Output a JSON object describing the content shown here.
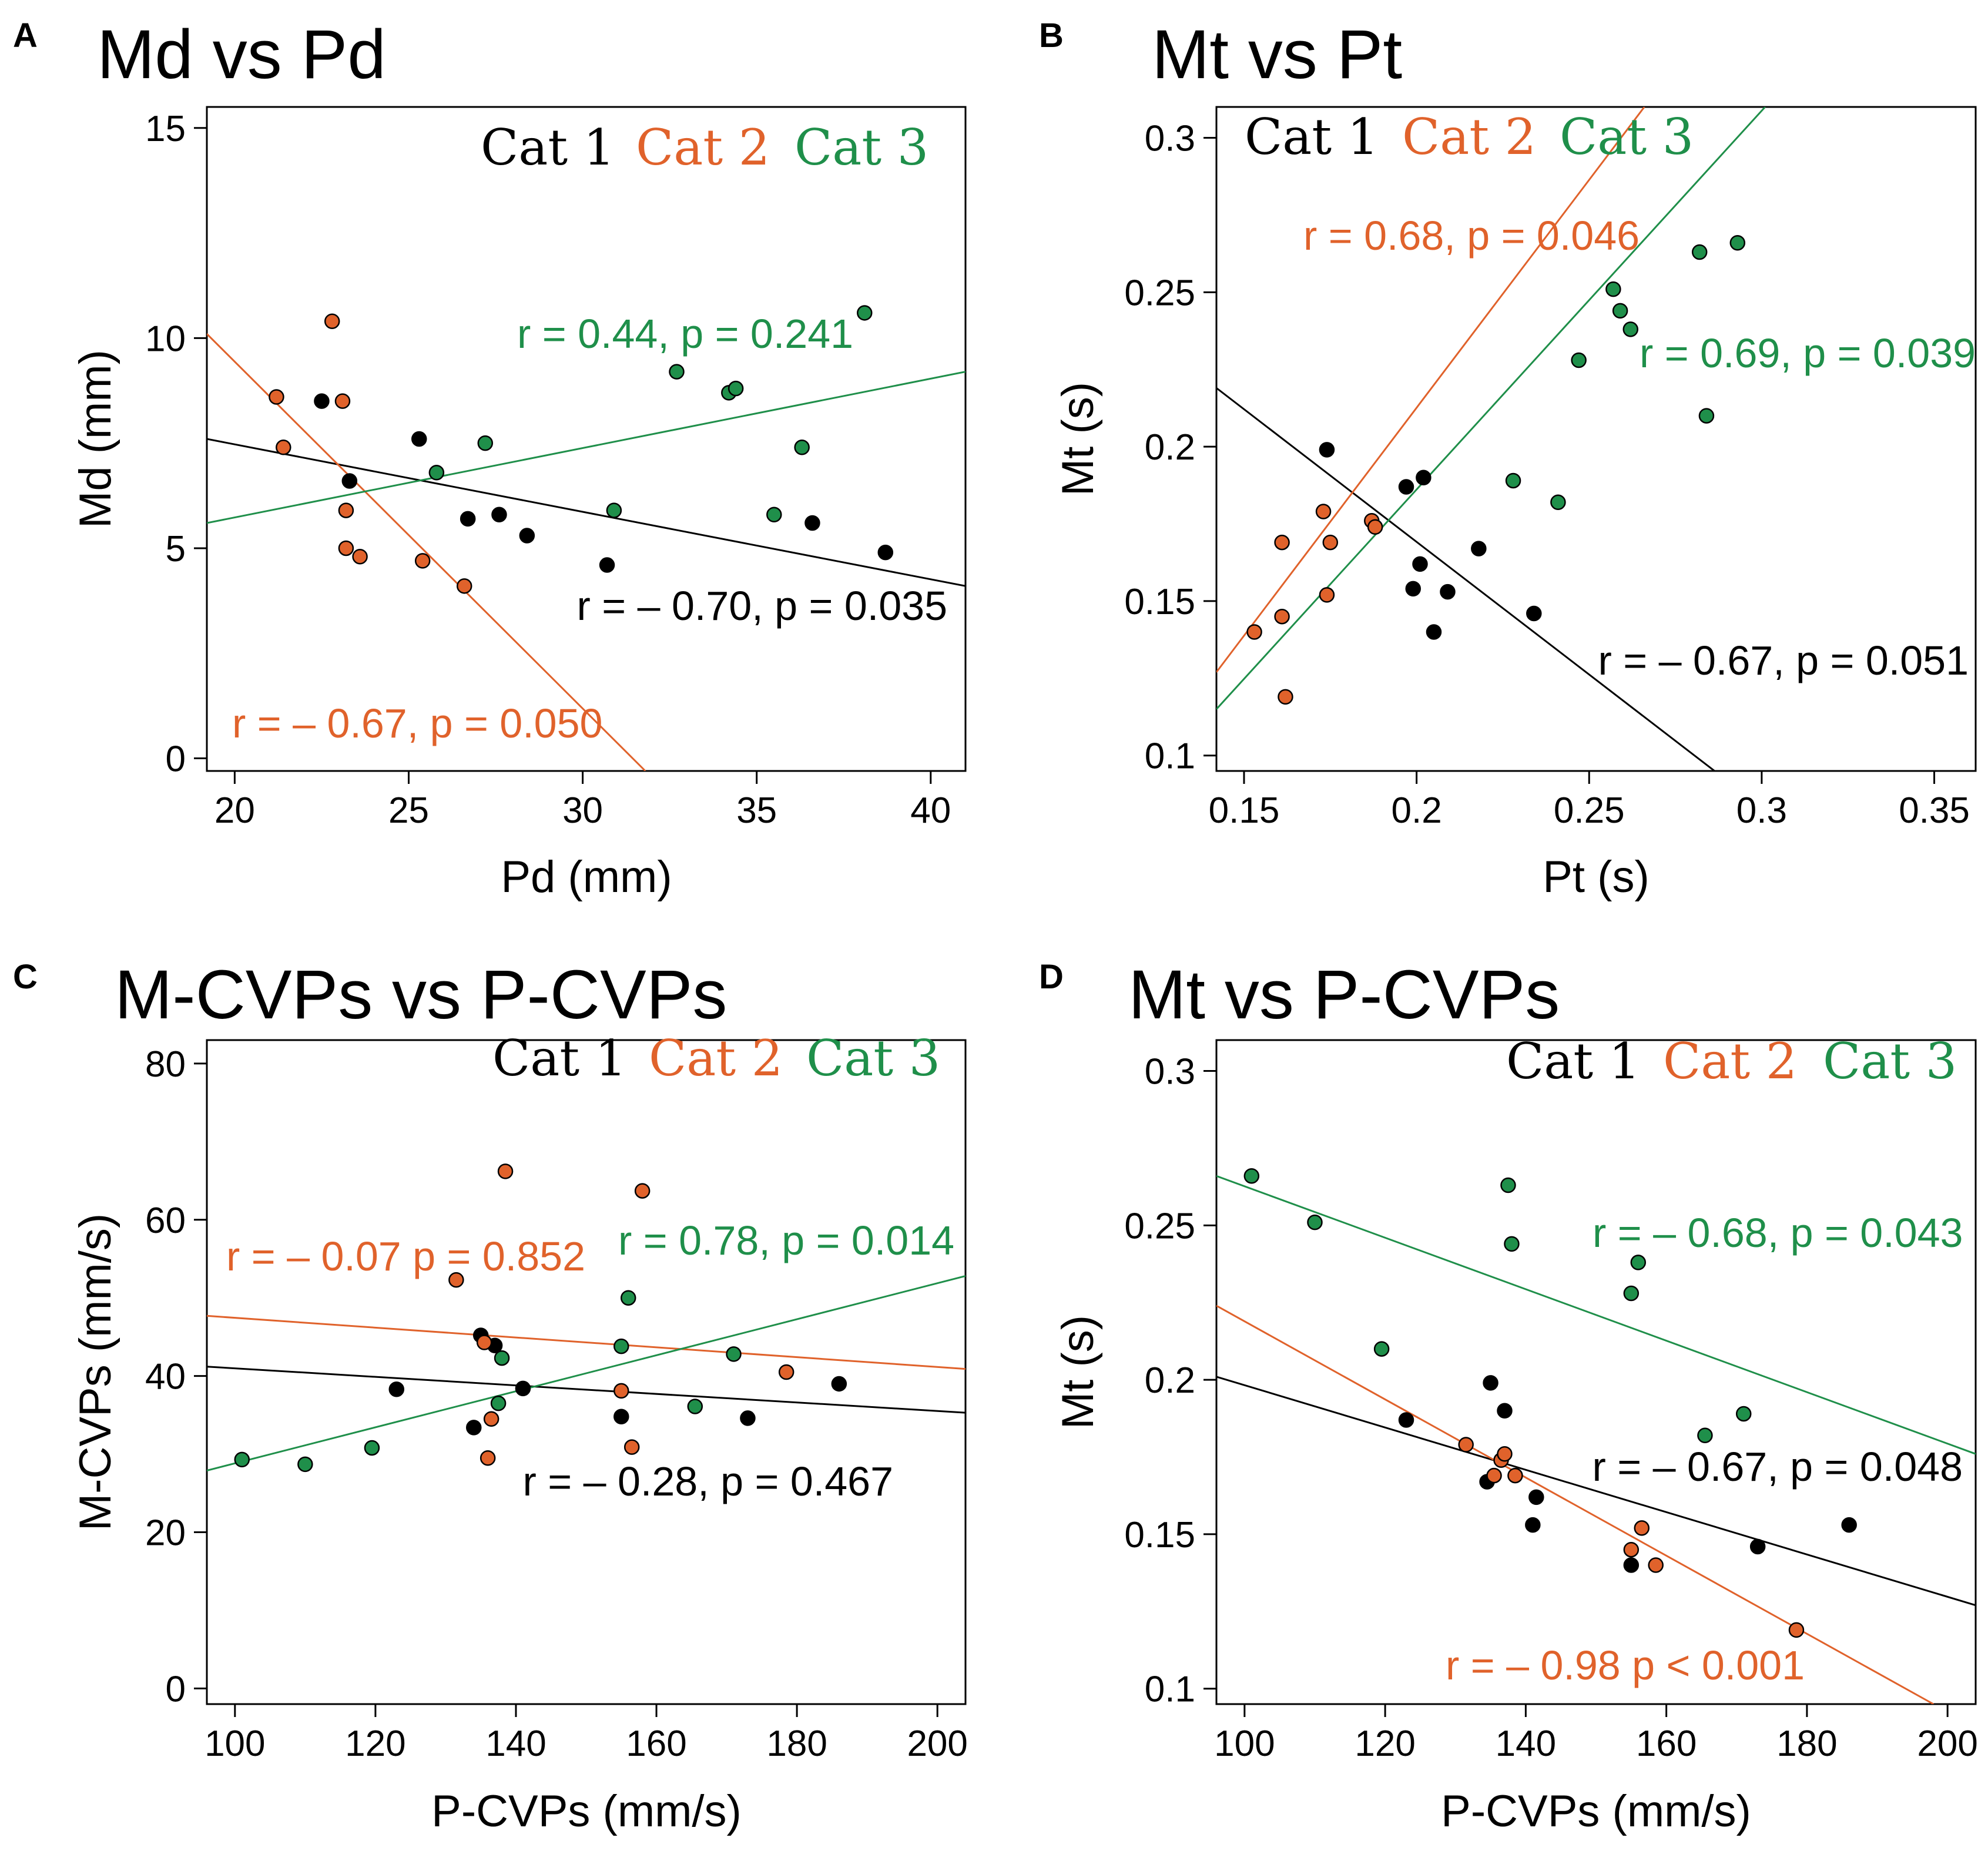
{
  "colors": {
    "cat1": "#000000",
    "cat2": "#e0622b",
    "cat3": "#1f8f4a"
  },
  "chart_data": [
    {
      "type": "scatter",
      "letter": "A",
      "title": "Md vs Pd",
      "xlabel": "Pd (mm)",
      "ylabel": "Md (mm)",
      "xlim": [
        19.2,
        41
      ],
      "ylim": [
        -0.3,
        15.5
      ],
      "xticks": [
        20,
        25,
        30,
        35,
        40
      ],
      "yticks": [
        0,
        5,
        10,
        15
      ],
      "legend": [
        "Cat 1",
        "Cat 2",
        "Cat 3"
      ],
      "series": [
        {
          "name": "Cat 1",
          "color_key": "cat1",
          "x": [
            22.5,
            23.3,
            25.3,
            26.7,
            27.6,
            28.4,
            30.7,
            36.6,
            38.7
          ],
          "y": [
            8.5,
            6.6,
            7.6,
            5.7,
            5.8,
            5.3,
            4.6,
            5.6,
            4.9
          ],
          "fit": [
            [
              19.2,
              7.6
            ],
            [
              41,
              4.1
            ]
          ],
          "annotation": "r = – 0.70, p = 0.035"
        },
        {
          "name": "Cat 2",
          "color_key": "cat2",
          "x": [
            21.2,
            21.4,
            22.8,
            23.1,
            23.2,
            23.2,
            23.6,
            25.4,
            26.6
          ],
          "y": [
            8.6,
            7.4,
            10.4,
            8.5,
            5.9,
            5.0,
            4.8,
            4.7,
            4.1
          ],
          "fit": [
            [
              19.2,
              10.1
            ],
            [
              31.8,
              -0.3
            ]
          ],
          "annotation": "r = – 0.67, p = 0.050"
        },
        {
          "name": "Cat 3",
          "color_key": "cat3",
          "x": [
            25.8,
            27.2,
            30.9,
            32.7,
            34.2,
            34.4,
            35.5,
            36.3,
            38.1
          ],
          "y": [
            6.8,
            7.5,
            5.9,
            9.2,
            8.7,
            8.8,
            5.8,
            7.4,
            10.6
          ],
          "fit": [
            [
              19.2,
              5.6
            ],
            [
              41,
              9.2
            ]
          ],
          "annotation": "r =  0.44, p = 0.241"
        }
      ]
    },
    {
      "type": "scatter",
      "letter": "B",
      "title": "Mt vs Pt",
      "xlabel": "Pt (s)",
      "ylabel": "Mt (s)",
      "xlim": [
        0.142,
        0.362
      ],
      "ylim": [
        0.095,
        0.31
      ],
      "xticks": [
        0.15,
        0.2,
        0.25,
        0.3,
        0.35
      ],
      "xtick_labels": [
        "0.15",
        "0.2",
        "0.25",
        "0.3",
        "0.35"
      ],
      "yticks": [
        0.1,
        0.15,
        0.2,
        0.25,
        0.3
      ],
      "ytick_labels": [
        "0.1",
        "0.15",
        "0.2",
        "0.25",
        "0.3"
      ],
      "legend": [
        "Cat 1",
        "Cat 2",
        "Cat 3"
      ],
      "series": [
        {
          "name": "Cat 1",
          "color_key": "cat1",
          "x": [
            0.174,
            0.197,
            0.199,
            0.201,
            0.202,
            0.205,
            0.209,
            0.218,
            0.234
          ],
          "y": [
            0.199,
            0.187,
            0.154,
            0.162,
            0.19,
            0.14,
            0.153,
            0.167,
            0.146
          ],
          "fit": [
            [
              0.142,
              0.219
            ],
            [
              0.291,
              0.091
            ]
          ],
          "annotation": "r = – 0.67, p = 0.051"
        },
        {
          "name": "Cat 2",
          "color_key": "cat2",
          "x": [
            0.153,
            0.161,
            0.161,
            0.162,
            0.173,
            0.174,
            0.175,
            0.187,
            0.188
          ],
          "y": [
            0.14,
            0.169,
            0.145,
            0.119,
            0.179,
            0.152,
            0.169,
            0.176,
            0.174
          ],
          "fit": [
            [
              0.142,
              0.127
            ],
            [
              0.266,
              0.31
            ]
          ],
          "annotation": "r = 0.68, p = 0.046"
        },
        {
          "name": "Cat 3",
          "color_key": "cat3",
          "x": [
            0.228,
            0.241,
            0.247,
            0.257,
            0.259,
            0.262,
            0.282,
            0.284,
            0.293
          ],
          "y": [
            0.189,
            0.182,
            0.228,
            0.251,
            0.244,
            0.238,
            0.263,
            0.21,
            0.266
          ],
          "fit": [
            [
              0.142,
              0.115
            ],
            [
              0.301,
              0.31
            ]
          ],
          "annotation": "r = 0.69, p = 0.039"
        }
      ]
    },
    {
      "type": "scatter",
      "letter": "C",
      "title": "M-CVPs vs P-CVPs",
      "xlabel": "P-CVPs (mm/s)",
      "ylabel": "M-CVPs (mm/s)",
      "xlim": [
        96,
        204
      ],
      "ylim": [
        -2,
        83
      ],
      "xticks": [
        100,
        120,
        140,
        160,
        180,
        200
      ],
      "yticks": [
        0,
        20,
        40,
        60,
        80
      ],
      "legend": [
        "Cat 1",
        "Cat 2",
        "Cat 3"
      ],
      "series": [
        {
          "name": "Cat 1",
          "color_key": "cat1",
          "x": [
            123,
            134,
            135,
            137,
            141,
            155,
            173,
            186
          ],
          "y": [
            38.3,
            33.4,
            45.2,
            43.9,
            38.4,
            34.8,
            34.6,
            39.0
          ],
          "fit": [
            [
              96,
              41.2
            ],
            [
              204,
              35.3
            ]
          ],
          "annotation": "r = – 0.28, p = 0.467"
        },
        {
          "name": "Cat 2",
          "color_key": "cat2",
          "x": [
            131.5,
            135.5,
            136,
            136.5,
            138.5,
            155,
            156.5,
            158,
            178.5
          ],
          "y": [
            52.3,
            44.3,
            29.5,
            34.5,
            66.2,
            38.1,
            30.9,
            63.7,
            40.5
          ],
          "fit": [
            [
              96,
              47.7
            ],
            [
              204,
              40.9
            ]
          ],
          "annotation": "r = – 0.07 p = 0.852"
        },
        {
          "name": "Cat 3",
          "color_key": "cat3",
          "x": [
            101,
            110,
            119.5,
            137.5,
            138,
            155,
            156,
            165.5,
            171
          ],
          "y": [
            29.3,
            28.7,
            30.8,
            36.5,
            42.3,
            43.8,
            50.0,
            36.1,
            42.8
          ],
          "fit": [
            [
              96,
              27.9
            ],
            [
              204,
              52.8
            ]
          ],
          "annotation": "r =  0.78, p = 0.014"
        }
      ]
    },
    {
      "type": "scatter",
      "letter": "D",
      "title": "Mt vs P-CVPs",
      "xlabel": "P-CVPs (mm/s)",
      "ylabel": "Mt (s)",
      "xlim": [
        96,
        204
      ],
      "ylim": [
        0.095,
        0.31
      ],
      "xticks": [
        100,
        120,
        140,
        160,
        180,
        200
      ],
      "yticks": [
        0.1,
        0.15,
        0.2,
        0.25,
        0.3
      ],
      "ytick_labels": [
        "0.1",
        "0.15",
        "0.2",
        "0.25",
        "0.3"
      ],
      "legend": [
        "Cat 1",
        "Cat 2",
        "Cat 3"
      ],
      "series": [
        {
          "name": "Cat 1",
          "color_key": "cat1",
          "x": [
            123,
            134.5,
            135,
            137,
            141,
            141.5,
            155,
            173,
            186
          ],
          "y": [
            0.187,
            0.167,
            0.199,
            0.19,
            0.153,
            0.162,
            0.14,
            0.146,
            0.153
          ],
          "fit": [
            [
              96,
              0.201
            ],
            [
              204,
              0.127
            ]
          ],
          "annotation": "r = – 0.67, p = 0.048"
        },
        {
          "name": "Cat 2",
          "color_key": "cat2",
          "x": [
            131.5,
            135.5,
            136.5,
            137,
            138.5,
            155,
            156.5,
            158.5,
            178.5
          ],
          "y": [
            0.179,
            0.169,
            0.174,
            0.176,
            0.169,
            0.145,
            0.152,
            0.14,
            0.119
          ],
          "fit": [
            [
              96,
              0.224
            ],
            [
              198,
              0.095
            ]
          ],
          "annotation": "r = – 0.98 p < 0.001"
        },
        {
          "name": "Cat 3",
          "color_key": "cat3",
          "x": [
            101,
            110,
            119.5,
            137.5,
            138,
            155,
            156,
            165.5,
            171
          ],
          "y": [
            0.266,
            0.251,
            0.21,
            0.263,
            0.244,
            0.228,
            0.238,
            0.182,
            0.189
          ],
          "fit": [
            [
              96,
              0.266
            ],
            [
              204,
              0.176
            ]
          ],
          "annotation": "r = – 0.68, p = 0.043"
        }
      ]
    }
  ]
}
